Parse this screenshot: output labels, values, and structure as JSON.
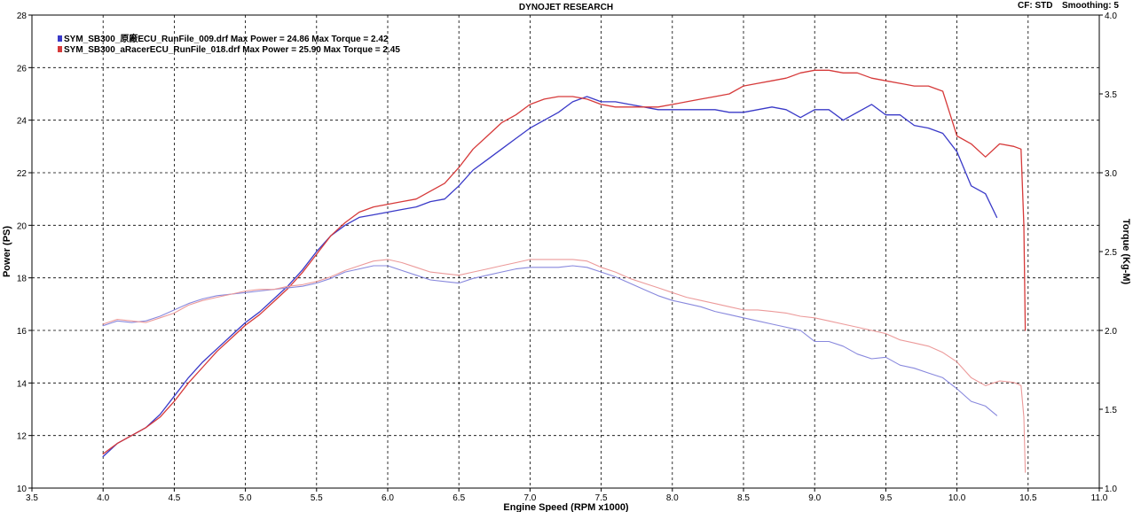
{
  "header": {
    "title": "DYNOJET RESEARCH",
    "correction": "CF: STD",
    "smoothing": "Smoothing: 5"
  },
  "chart_data": {
    "type": "line",
    "xlabel": "Engine Speed (RPM x1000)",
    "ylabel": "Power (PS)",
    "y2label": "Torque (Kg-M)",
    "xlim": [
      3.5,
      11.0
    ],
    "ylim": [
      10,
      28
    ],
    "y2lim": [
      1.0,
      4.0
    ],
    "x_ticks": [
      "3.5",
      "4.0",
      "4.5",
      "5.0",
      "5.5",
      "6.0",
      "6.5",
      "7.0",
      "7.5",
      "8.0",
      "8.5",
      "9.0",
      "9.5",
      "10.0",
      "10.5",
      "11.0"
    ],
    "y_ticks": [
      "10",
      "12",
      "14",
      "16",
      "18",
      "20",
      "22",
      "24",
      "26",
      "28"
    ],
    "y2_ticks": [
      "1.0",
      "1.5",
      "2.0",
      "2.5",
      "3.0",
      "3.5",
      "4.0"
    ],
    "grid": true,
    "legend_position": "top-left",
    "legend": [
      {
        "text": "SYM_SB300_原廠ECU_RunFile_009.drf Max Power = 24.86     Max Torque = 2.42",
        "color": "#3a3ac8"
      },
      {
        "text": "SYM_SB300_aRacerECU_RunFile_018.drf Max Power = 25.90     Max Torque = 2.45",
        "color": "#d63a3a"
      }
    ],
    "series": [
      {
        "axis": "power",
        "color": "#3a3ac8",
        "width": 1.3,
        "x": [
          4.0,
          4.1,
          4.2,
          4.3,
          4.4,
          4.5,
          4.6,
          4.7,
          4.8,
          4.9,
          5.0,
          5.1,
          5.2,
          5.3,
          5.4,
          5.5,
          5.6,
          5.7,
          5.8,
          5.9,
          6.0,
          6.1,
          6.2,
          6.3,
          6.4,
          6.5,
          6.6,
          6.7,
          6.8,
          6.9,
          7.0,
          7.1,
          7.2,
          7.3,
          7.4,
          7.5,
          7.6,
          7.7,
          7.8,
          7.9,
          8.0,
          8.1,
          8.2,
          8.3,
          8.4,
          8.5,
          8.6,
          8.7,
          8.8,
          8.9,
          9.0,
          9.1,
          9.2,
          9.3,
          9.4,
          9.5,
          9.6,
          9.7,
          9.8,
          9.9,
          10.0,
          10.1,
          10.2,
          10.28
        ],
        "y": [
          11.2,
          11.7,
          12.0,
          12.3,
          12.8,
          13.5,
          14.2,
          14.8,
          15.3,
          15.8,
          16.3,
          16.7,
          17.2,
          17.7,
          18.3,
          19.0,
          19.6,
          20.0,
          20.3,
          20.4,
          20.5,
          20.6,
          20.7,
          20.9,
          21.0,
          21.5,
          22.1,
          22.5,
          22.9,
          23.3,
          23.7,
          24.0,
          24.3,
          24.7,
          24.9,
          24.7,
          24.7,
          24.6,
          24.5,
          24.4,
          24.4,
          24.4,
          24.4,
          24.4,
          24.3,
          24.3,
          24.4,
          24.5,
          24.4,
          24.1,
          24.4,
          24.4,
          24.0,
          24.3,
          24.6,
          24.2,
          24.2,
          23.8,
          23.7,
          23.5,
          22.8,
          21.5,
          21.2,
          20.3
        ]
      },
      {
        "axis": "power",
        "color": "#d63a3a",
        "width": 1.3,
        "x": [
          4.0,
          4.1,
          4.2,
          4.3,
          4.4,
          4.5,
          4.6,
          4.7,
          4.8,
          4.9,
          5.0,
          5.1,
          5.2,
          5.3,
          5.4,
          5.5,
          5.6,
          5.7,
          5.8,
          5.9,
          6.0,
          6.1,
          6.2,
          6.3,
          6.4,
          6.5,
          6.6,
          6.7,
          6.8,
          6.9,
          7.0,
          7.1,
          7.2,
          7.3,
          7.4,
          7.5,
          7.6,
          7.7,
          7.8,
          7.9,
          8.0,
          8.1,
          8.2,
          8.3,
          8.4,
          8.5,
          8.6,
          8.7,
          8.8,
          8.9,
          9.0,
          9.1,
          9.2,
          9.3,
          9.4,
          9.5,
          9.6,
          9.7,
          9.8,
          9.9,
          10.0,
          10.1,
          10.2,
          10.3,
          10.4,
          10.45,
          10.47,
          10.48
        ],
        "y": [
          11.3,
          11.7,
          12.0,
          12.3,
          12.7,
          13.3,
          14.0,
          14.6,
          15.2,
          15.7,
          16.2,
          16.6,
          17.1,
          17.6,
          18.2,
          18.9,
          19.6,
          20.1,
          20.5,
          20.7,
          20.8,
          20.9,
          21.0,
          21.3,
          21.6,
          22.2,
          22.9,
          23.4,
          23.9,
          24.2,
          24.6,
          24.8,
          24.9,
          24.9,
          24.8,
          24.6,
          24.5,
          24.5,
          24.5,
          24.5,
          24.6,
          24.7,
          24.8,
          24.9,
          25.0,
          25.3,
          25.4,
          25.5,
          25.6,
          25.8,
          25.9,
          25.9,
          25.8,
          25.8,
          25.6,
          25.5,
          25.4,
          25.3,
          25.3,
          25.1,
          23.4,
          23.1,
          22.6,
          23.1,
          23.0,
          22.9,
          20.0,
          16.0
        ]
      },
      {
        "axis": "torque",
        "color": "#8888dd",
        "width": 1.1,
        "x": [
          4.0,
          4.1,
          4.2,
          4.3,
          4.4,
          4.5,
          4.6,
          4.7,
          4.8,
          4.9,
          5.0,
          5.1,
          5.2,
          5.3,
          5.4,
          5.5,
          5.6,
          5.7,
          5.8,
          5.9,
          6.0,
          6.1,
          6.2,
          6.3,
          6.4,
          6.5,
          6.6,
          6.7,
          6.8,
          6.9,
          7.0,
          7.1,
          7.2,
          7.3,
          7.4,
          7.5,
          7.6,
          7.7,
          7.8,
          7.9,
          8.0,
          8.1,
          8.2,
          8.3,
          8.4,
          8.5,
          8.6,
          8.7,
          8.8,
          8.9,
          9.0,
          9.1,
          9.2,
          9.3,
          9.4,
          9.5,
          9.6,
          9.7,
          9.8,
          9.9,
          10.0,
          10.1,
          10.2,
          10.28
        ],
        "y": [
          2.03,
          2.06,
          2.05,
          2.06,
          2.09,
          2.13,
          2.17,
          2.2,
          2.22,
          2.23,
          2.24,
          2.25,
          2.26,
          2.27,
          2.28,
          2.3,
          2.33,
          2.37,
          2.39,
          2.41,
          2.41,
          2.38,
          2.35,
          2.32,
          2.31,
          2.3,
          2.33,
          2.35,
          2.37,
          2.39,
          2.4,
          2.4,
          2.4,
          2.41,
          2.4,
          2.37,
          2.34,
          2.3,
          2.26,
          2.22,
          2.19,
          2.17,
          2.15,
          2.12,
          2.1,
          2.08,
          2.06,
          2.04,
          2.02,
          2.0,
          1.93,
          1.93,
          1.9,
          1.85,
          1.82,
          1.83,
          1.78,
          1.76,
          1.73,
          1.7,
          1.63,
          1.55,
          1.52,
          1.46
        ]
      },
      {
        "axis": "torque",
        "color": "#ec9a9a",
        "width": 1.1,
        "x": [
          4.0,
          4.1,
          4.2,
          4.3,
          4.4,
          4.5,
          4.6,
          4.7,
          4.8,
          4.9,
          5.0,
          5.1,
          5.2,
          5.3,
          5.4,
          5.5,
          5.6,
          5.7,
          5.8,
          5.9,
          6.0,
          6.1,
          6.2,
          6.3,
          6.4,
          6.5,
          6.6,
          6.7,
          6.8,
          6.9,
          7.0,
          7.1,
          7.2,
          7.3,
          7.4,
          7.5,
          7.6,
          7.7,
          7.8,
          7.9,
          8.0,
          8.1,
          8.2,
          8.3,
          8.4,
          8.5,
          8.6,
          8.7,
          8.8,
          8.9,
          9.0,
          9.1,
          9.2,
          9.3,
          9.4,
          9.5,
          9.6,
          9.7,
          9.8,
          9.9,
          10.0,
          10.1,
          10.2,
          10.3,
          10.4,
          10.45,
          10.47,
          10.48
        ],
        "y": [
          2.04,
          2.07,
          2.06,
          2.05,
          2.08,
          2.11,
          2.16,
          2.19,
          2.21,
          2.23,
          2.25,
          2.26,
          2.26,
          2.28,
          2.29,
          2.31,
          2.34,
          2.38,
          2.41,
          2.44,
          2.45,
          2.43,
          2.4,
          2.37,
          2.36,
          2.35,
          2.37,
          2.39,
          2.41,
          2.43,
          2.45,
          2.45,
          2.45,
          2.45,
          2.44,
          2.4,
          2.37,
          2.33,
          2.3,
          2.27,
          2.24,
          2.21,
          2.19,
          2.17,
          2.15,
          2.13,
          2.13,
          2.12,
          2.11,
          2.09,
          2.08,
          2.06,
          2.04,
          2.02,
          2.0,
          1.98,
          1.94,
          1.92,
          1.9,
          1.86,
          1.8,
          1.7,
          1.65,
          1.68,
          1.67,
          1.65,
          1.45,
          1.1
        ]
      }
    ]
  }
}
